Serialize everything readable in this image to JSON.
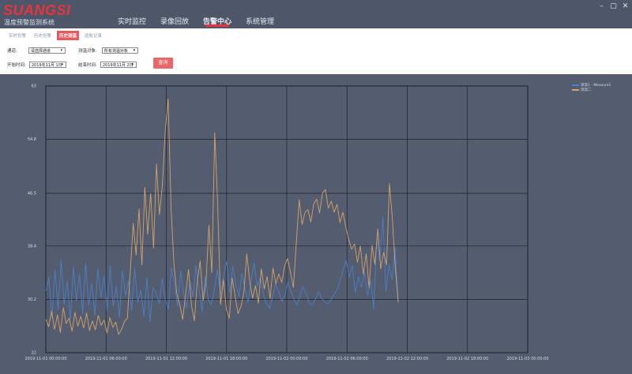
{
  "app": {
    "logo": "SUANGSI",
    "subtitle": "温度预警监测系统"
  },
  "nav": {
    "items": [
      "实时监控",
      "录像回放",
      "告警中心",
      "系统管理"
    ],
    "active_index": 2
  },
  "window_controls": [
    "–",
    "▢",
    "✕"
  ],
  "subtabs": {
    "items": [
      "实时告警",
      "历史告警",
      "历史测温",
      "巡航记录"
    ],
    "active_index": 2
  },
  "filters": {
    "channel_label": "通道:",
    "channel_value": "请选择通道",
    "target_label": "测温对象:",
    "target_value": "所有测温对象",
    "start_label": "开始时间:",
    "start_value": "2019年11月 1日",
    "end_label": "结束时间:",
    "end_value": "2019年11月 2日",
    "query_label": "查询"
  },
  "colors": {
    "accent": "#e8343a",
    "chart_bg": "#545c70",
    "series_1": "#4a80c8",
    "series_2": "#d4a36a"
  },
  "chart_data": {
    "type": "line",
    "ylim": [
      22,
      63
    ],
    "y_ticks": [
      "63",
      "54.8",
      "46.5",
      "38.4",
      "30.2",
      "22"
    ],
    "x_ticks": [
      "2019-11-01 00:00:00",
      "2019-11-01 06:00:00",
      "2019-11-01 12:00:00",
      "2019-11-01 18:00:00",
      "2019-11-02 00:00:00",
      "2019-11-02 06:00:00",
      "2019-11-02 12:00:00",
      "2019-11-02 18:00:00",
      "2019-11-03 00:00:00"
    ],
    "grid": true,
    "legend_position": "top-right",
    "series": [
      {
        "name": "测温1 - Measure1",
        "color": "#4a80c8",
        "values": [
          31.5,
          33.6,
          27.5,
          34.8,
          28.6,
          36.1,
          29.4,
          33.0,
          27.1,
          35.2,
          30.0,
          34.1,
          28.0,
          35.7,
          29.3,
          32.6,
          27.7,
          34.9,
          30.5,
          33.8,
          28.4,
          35.4,
          29.1,
          32.2,
          27.4,
          34.6,
          30.8,
          33.1,
          28.5,
          35.0,
          29.7,
          31.6,
          27.6,
          33.5,
          26.8,
          32.0,
          31.2,
          29.5,
          33.4,
          30.1,
          28.7,
          35.1,
          32.4,
          29.2,
          34.5,
          31.0,
          28.9,
          33.2,
          30.6,
          35.4,
          31.9,
          28.3,
          33.7,
          30.2,
          29.4,
          31.6,
          34.8,
          30.9,
          33.8,
          36.0,
          31.2,
          35.3,
          32.5,
          30.6,
          34.2,
          31.8,
          29.7,
          33.1,
          35.8,
          32.2,
          33.6,
          31.0,
          29.6,
          28.8,
          30.6,
          32.6,
          31.4,
          29.9,
          30.8,
          32.9,
          31.4,
          30.2,
          29.3,
          30.9,
          32.1,
          31.0,
          29.6,
          29.4,
          30.2,
          31.3,
          30.4,
          29.8,
          29.5,
          30.1,
          30.9,
          31.6,
          33.0,
          34.8,
          36.2,
          33.6,
          35.5,
          31.2,
          33.7,
          32.0,
          34.4,
          30.8,
          33.1,
          28.7,
          39.6,
          36.0,
          42.8,
          31.4,
          35.5,
          33.2,
          38.2,
          29.7
        ],
        "x_start_index": 0
      },
      {
        "name": "测温二",
        "color": "#d4a36a",
        "values": [
          27.1,
          26.0,
          28.4,
          25.6,
          27.8,
          25.1,
          28.9,
          26.5,
          27.3,
          25.3,
          28.2,
          26.1,
          27.6,
          25.8,
          28.1,
          25.4,
          26.9,
          25.5,
          27.7,
          26.2,
          27.0,
          25.0,
          27.4,
          25.9,
          26.7,
          24.8,
          25.6,
          26.8,
          27.3,
          34.4,
          41.9,
          37.0,
          44.1,
          35.5,
          47.4,
          40.2,
          46.5,
          38.1,
          51.0,
          43.2,
          47.6,
          56.0,
          61.0,
          44.3,
          35.6,
          31.0,
          29.4,
          27.1,
          30.9,
          34.8,
          29.3,
          26.9,
          32.9,
          36.1,
          30.0,
          32.8,
          41.6,
          34.3,
          55.8,
          45.0,
          29.4,
          33.2,
          28.6,
          27.3,
          33.5,
          30.7,
          28.0,
          29.1,
          31.2,
          37.2,
          33.0,
          30.4,
          32.3,
          29.6,
          34.9,
          31.8,
          33.7,
          30.3,
          35.0,
          32.6,
          34.1,
          32.8,
          35.3,
          36.5,
          34.4,
          32.0,
          38.8,
          45.5,
          41.7,
          43.6,
          44.0,
          42.1,
          44.9,
          45.6,
          43.5,
          46.5,
          47.1,
          44.2,
          45.3,
          43.6,
          44.8,
          42.0,
          43.6,
          41.3,
          39.4,
          37.9,
          38.7,
          35.9,
          38.4,
          34.1,
          37.2,
          32.0,
          38.5,
          35.6,
          41.0,
          34.9,
          37.4,
          35.5,
          48.0,
          42.6,
          35.0,
          29.8
        ],
        "x_start_index": 0
      }
    ]
  }
}
